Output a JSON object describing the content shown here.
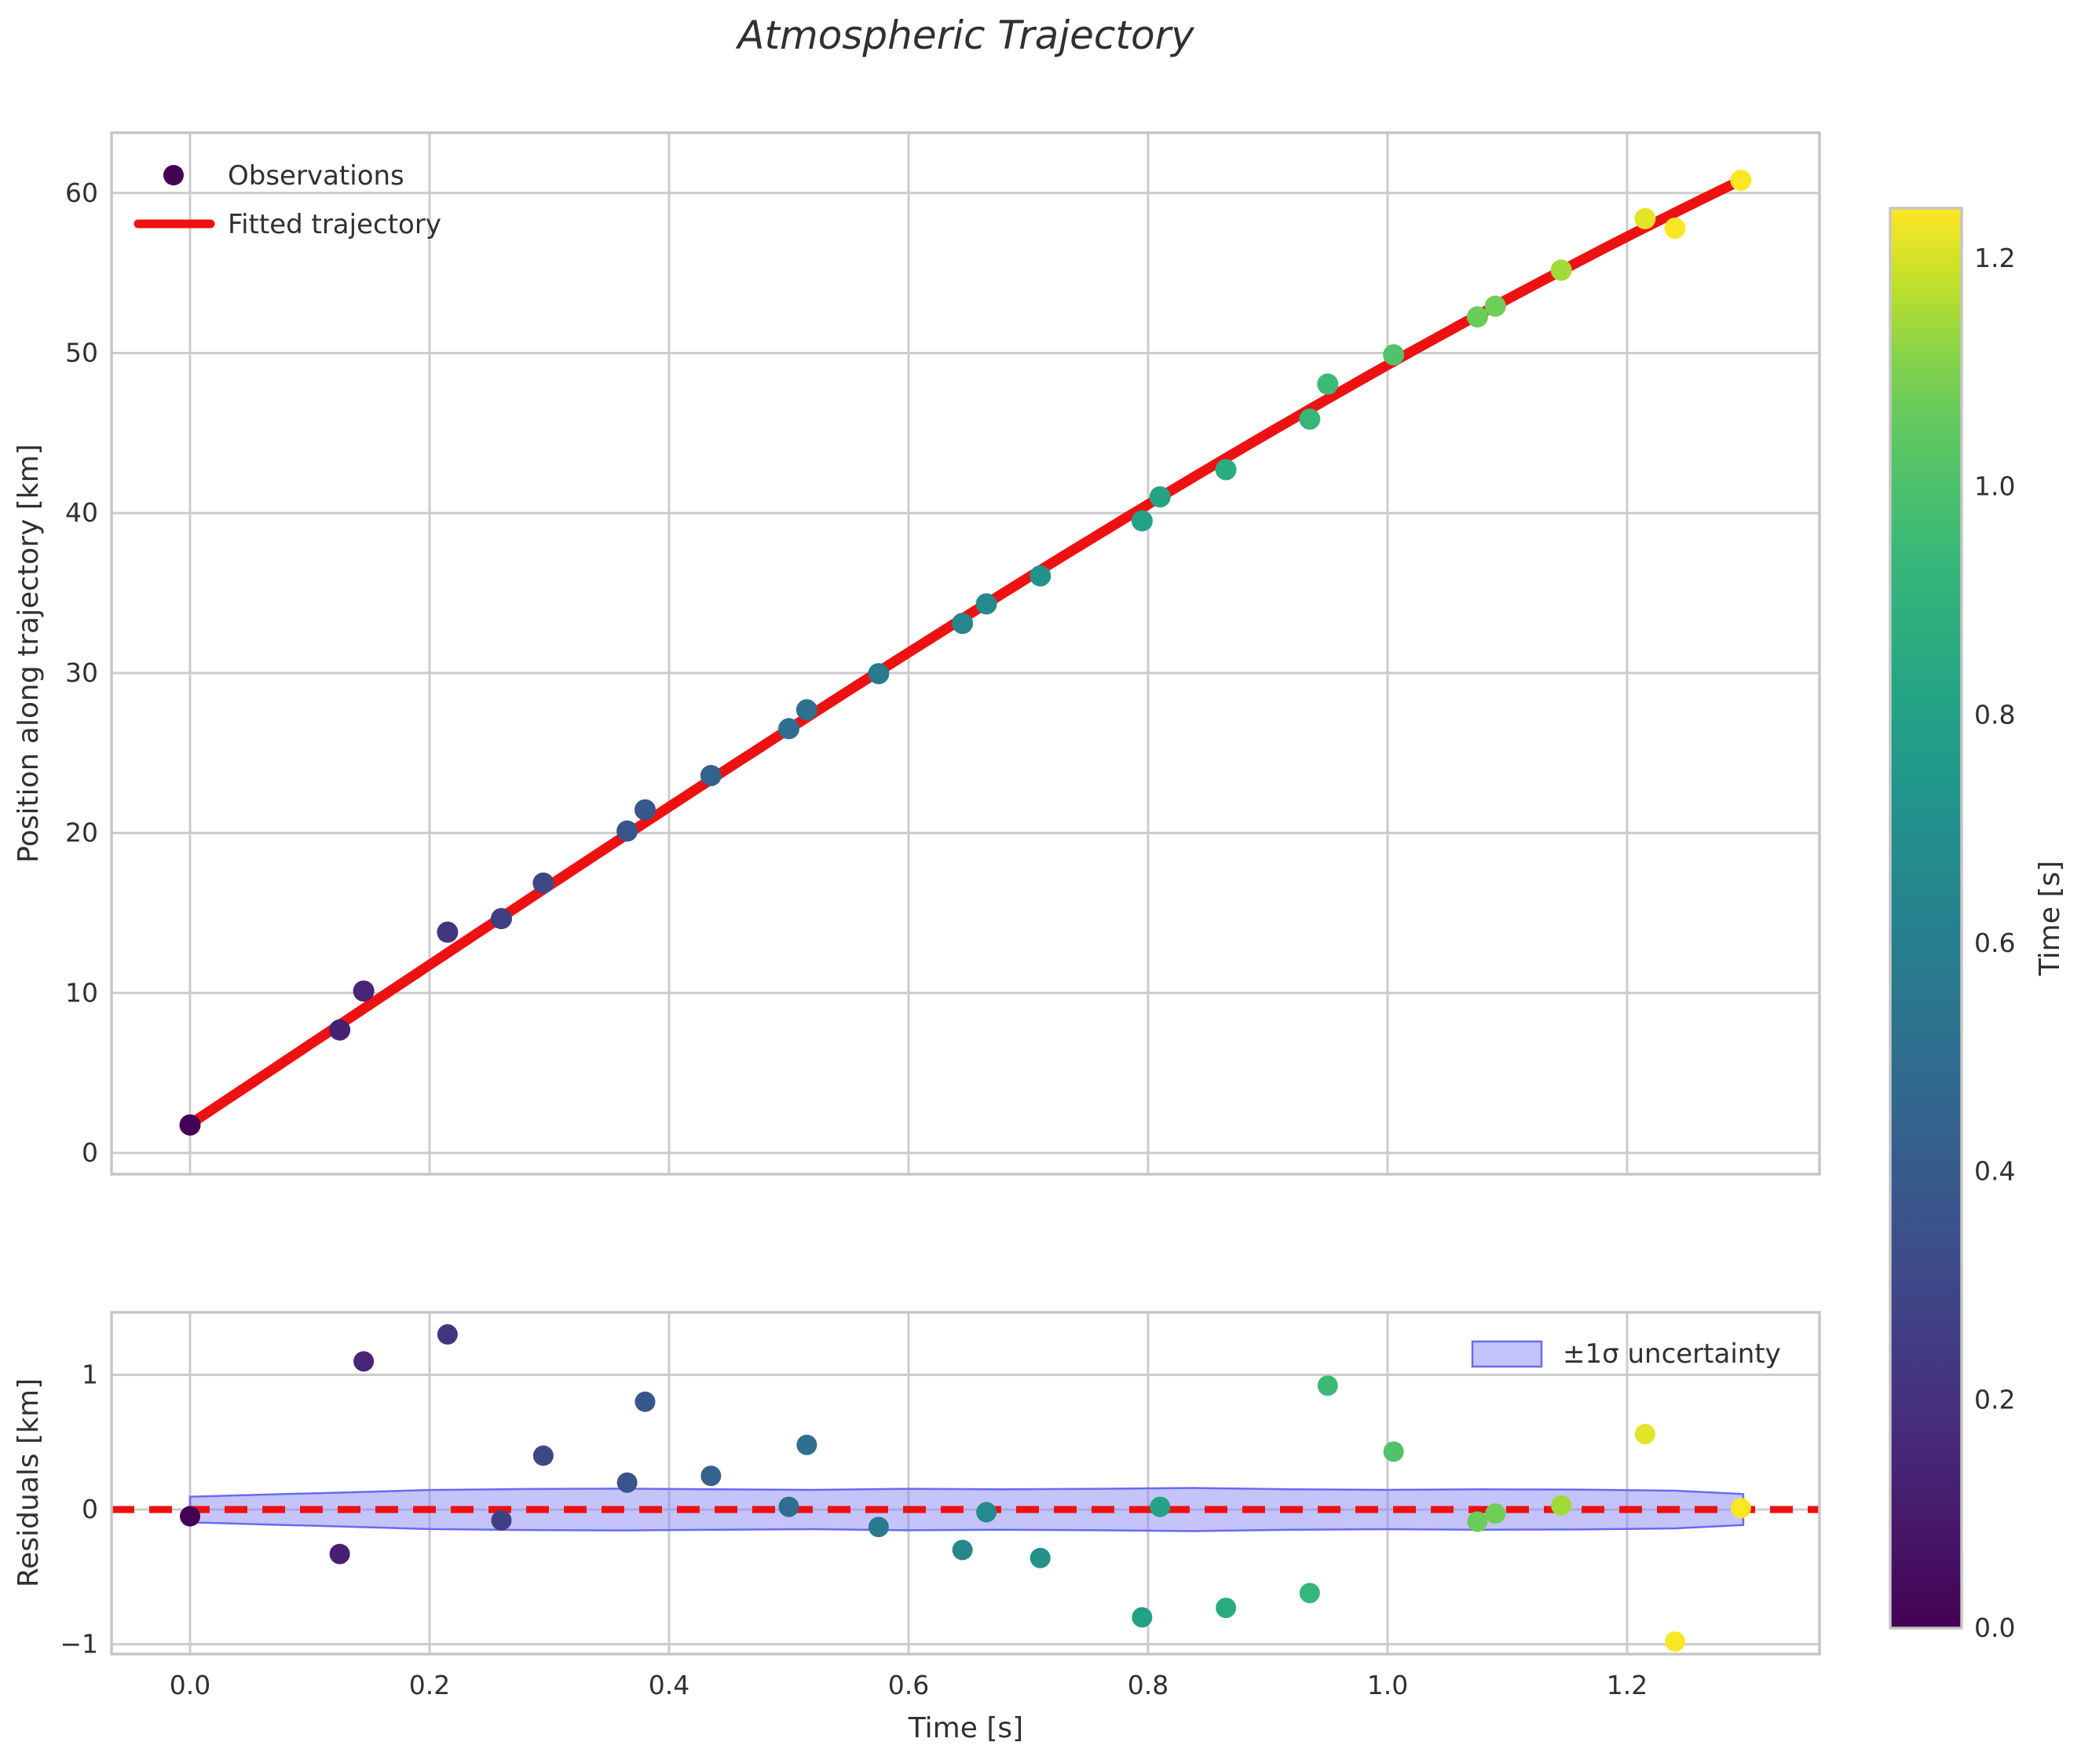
{
  "title": "Atmospheric Trajectory",
  "top_panel": {
    "ylabel": "Position along trajectory [km]",
    "ytick_labels": [
      "0",
      "10",
      "20",
      "30",
      "40",
      "50",
      "60"
    ],
    "ytick_values": [
      0,
      10,
      20,
      30,
      40,
      50,
      60
    ],
    "legend": {
      "observations": "Observations",
      "fitted": "Fitted trajectory"
    }
  },
  "bottom_panel": {
    "ylabel": "Residuals [km]",
    "xlabel": "Time [s]",
    "ytick_labels": [
      "−1",
      "0",
      "1"
    ],
    "ytick_values": [
      -1,
      0,
      1
    ],
    "xtick_labels": [
      "0.0",
      "0.2",
      "0.4",
      "0.6",
      "0.8",
      "1.0",
      "1.2"
    ],
    "xtick_values": [
      0.0,
      0.2,
      0.4,
      0.6,
      0.8,
      1.0,
      1.2
    ],
    "legend": {
      "band": "±1σ uncertainty"
    }
  },
  "colorbar": {
    "label": "Time [s]",
    "tick_labels": [
      "0.0",
      "0.2",
      "0.4",
      "0.6",
      "0.8",
      "1.0",
      "1.2"
    ],
    "tick_values": [
      0.0,
      0.2,
      0.4,
      0.6,
      0.8,
      1.0,
      1.2
    ],
    "vmin": 0.0,
    "vmax": 1.244
  },
  "colors": {
    "fit_line": "#ee1111",
    "zero_line": "#ee1111",
    "band_fill": "rgba(132,132,246,0.48)",
    "band_edge": "#6a6af0",
    "grid": "#cccccc",
    "spine": "#c6c6c6",
    "text": "#303030",
    "first_marker": "#440154",
    "viridis_positions": [
      0,
      0.125,
      0.25,
      0.375,
      0.5,
      0.625,
      0.75,
      0.875,
      0.9375,
      1.0
    ],
    "viridis_anchors": [
      [
        68,
        1,
        84
      ],
      [
        72,
        40,
        120
      ],
      [
        62,
        74,
        137
      ],
      [
        49,
        104,
        142
      ],
      [
        38,
        130,
        142
      ],
      [
        31,
        158,
        137
      ],
      [
        53,
        183,
        121
      ],
      [
        110,
        206,
        88
      ],
      [
        181,
        222,
        43
      ],
      [
        253,
        231,
        37
      ]
    ]
  },
  "chart_data": [
    {
      "type": "scatter",
      "title": "Atmospheric Trajectory",
      "xlabel": "Time [s]",
      "ylabel": "Position along trajectory [km]",
      "xlim": [
        -0.066,
        1.361
      ],
      "ylim": [
        -1.33,
        63.8
      ],
      "grid": true,
      "legend_position": "upper left",
      "series": [
        {
          "name": "Observations",
          "type": "scatter",
          "colormap": "viridis",
          "color_by": "time",
          "x": [
            0.0,
            0.125,
            0.145,
            0.215,
            0.26,
            0.295,
            0.365,
            0.38,
            0.435,
            0.5,
            0.515,
            0.575,
            0.645,
            0.665,
            0.71,
            0.795,
            0.81,
            0.865,
            0.935,
            0.95,
            1.005,
            1.075,
            1.09,
            1.145,
            1.215,
            1.24,
            1.295
          ],
          "y": [
            1.75,
            7.69,
            10.12,
            13.8,
            14.65,
            16.87,
            20.12,
            21.45,
            23.59,
            26.52,
            27.7,
            29.96,
            33.1,
            34.32,
            36.07,
            39.51,
            41.01,
            42.71,
            45.87,
            48.06,
            49.89,
            52.26,
            52.93,
            55.18,
            58.4,
            57.8,
            60.8
          ]
        },
        {
          "name": "Fitted trajectory",
          "type": "line",
          "color": "#ee1111",
          "model": "cubic",
          "coeffs": [
            1.8,
            49.71,
            0.978,
            -3.233
          ],
          "t_range": [
            0,
            1.297
          ]
        }
      ]
    },
    {
      "type": "scatter",
      "xlabel": "Time [s]",
      "ylabel": "Residuals [km]",
      "xlim": [
        -0.066,
        1.361
      ],
      "ylim": [
        -1.073,
        1.464
      ],
      "grid": true,
      "zero_line": {
        "y": 0,
        "style": "dashed",
        "color": "#ee1111"
      },
      "series": [
        {
          "name": "residuals",
          "type": "scatter",
          "colormap": "viridis",
          "color_by": "time",
          "x": [
            0.0,
            0.125,
            0.145,
            0.215,
            0.26,
            0.295,
            0.365,
            0.38,
            0.435,
            0.5,
            0.515,
            0.575,
            0.645,
            0.665,
            0.71,
            0.795,
            0.81,
            0.865,
            0.935,
            0.95,
            1.005,
            1.075,
            1.09,
            1.145,
            1.215,
            1.24,
            1.295
          ],
          "y": [
            -0.05,
            -0.33,
            1.1,
            1.3,
            -0.08,
            0.4,
            0.2,
            0.8,
            0.25,
            0.02,
            0.48,
            -0.13,
            -0.3,
            -0.02,
            -0.36,
            -0.8,
            0.02,
            -0.73,
            -0.62,
            0.92,
            0.43,
            -0.09,
            -0.03,
            0.03,
            0.56,
            -0.98,
            0.01
          ]
        }
      ],
      "band": {
        "label": "±1σ uncertainty",
        "x": [
          0.0,
          0.06,
          0.13,
          0.2,
          0.28,
          0.36,
          0.44,
          0.52,
          0.6,
          0.68,
          0.76,
          0.84,
          0.92,
          1.0,
          1.08,
          1.16,
          1.24,
          1.297
        ],
        "halfwidth": [
          0.095,
          0.11,
          0.127,
          0.145,
          0.152,
          0.155,
          0.15,
          0.146,
          0.154,
          0.15,
          0.154,
          0.16,
          0.15,
          0.146,
          0.15,
          0.148,
          0.14,
          0.115
        ]
      }
    }
  ]
}
